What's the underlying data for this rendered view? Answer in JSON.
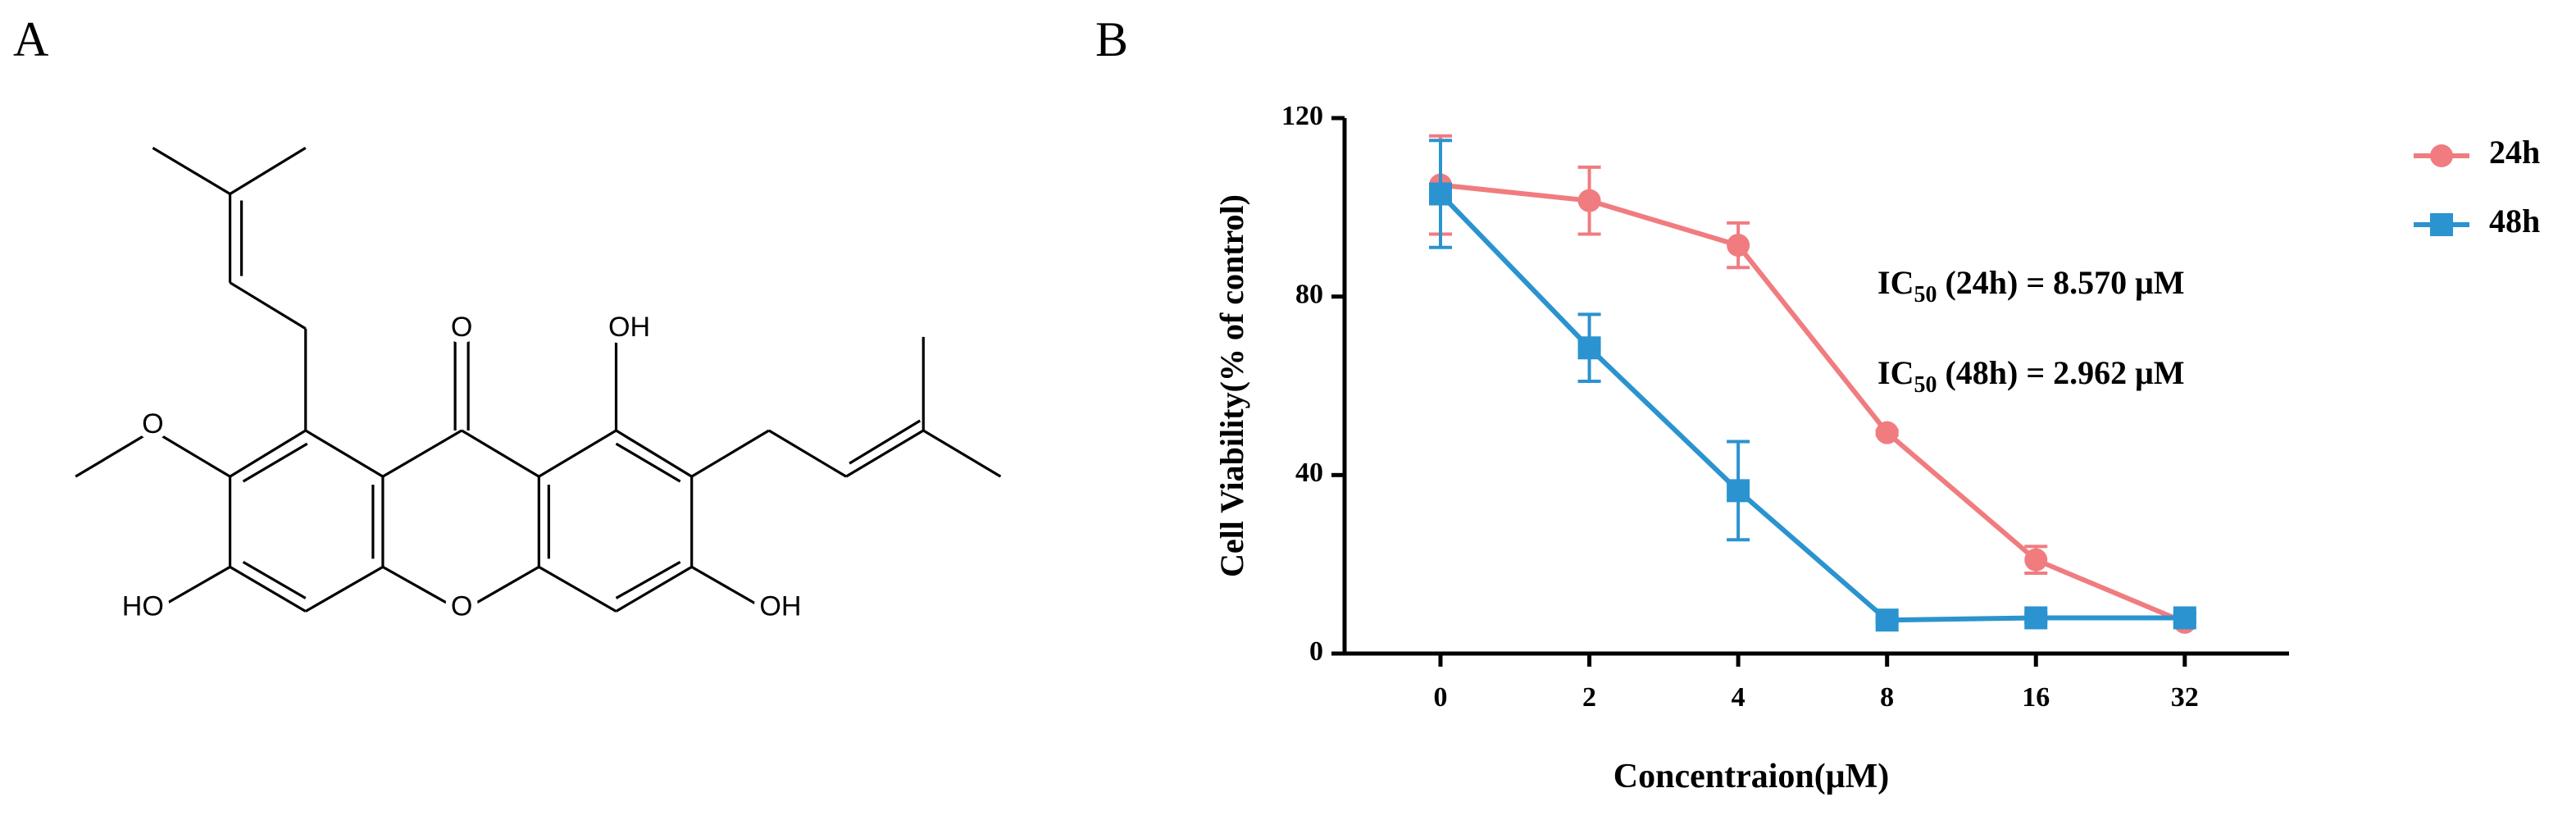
{
  "panel_a": {
    "label": "A",
    "atoms": [
      "O",
      "OH",
      "O",
      "HO",
      "O",
      "OH"
    ]
  },
  "chart_data": {
    "type": "line",
    "panel_label": "B",
    "x_label": "Concentraion(μM)",
    "y_label": "Cell Viability(% of control)",
    "categories": [
      "0",
      "2",
      "4",
      "8",
      "16",
      "32"
    ],
    "series": [
      {
        "name": "24h",
        "color": "#f07c80",
        "marker": "circle",
        "values": [
          105,
          101.5,
          91.5,
          49.5,
          21,
          7
        ],
        "errors": [
          11,
          7.5,
          5,
          0.5,
          3,
          1
        ]
      },
      {
        "name": "48h",
        "color": "#2b93cf",
        "marker": "square",
        "values": [
          103,
          68.5,
          36.5,
          7.5,
          8,
          8
        ],
        "errors": [
          12,
          7.5,
          11,
          0.5,
          1,
          1
        ]
      }
    ],
    "ylim": [
      0,
      120
    ],
    "yticks": [
      0,
      40,
      80,
      120
    ],
    "annotations": [
      {
        "prefix": "IC",
        "sub": "50",
        "text": " (24h) = 8.570 μM"
      },
      {
        "prefix": "IC",
        "sub": "50",
        "text": " (48h) = 2.962 μM"
      }
    ]
  }
}
